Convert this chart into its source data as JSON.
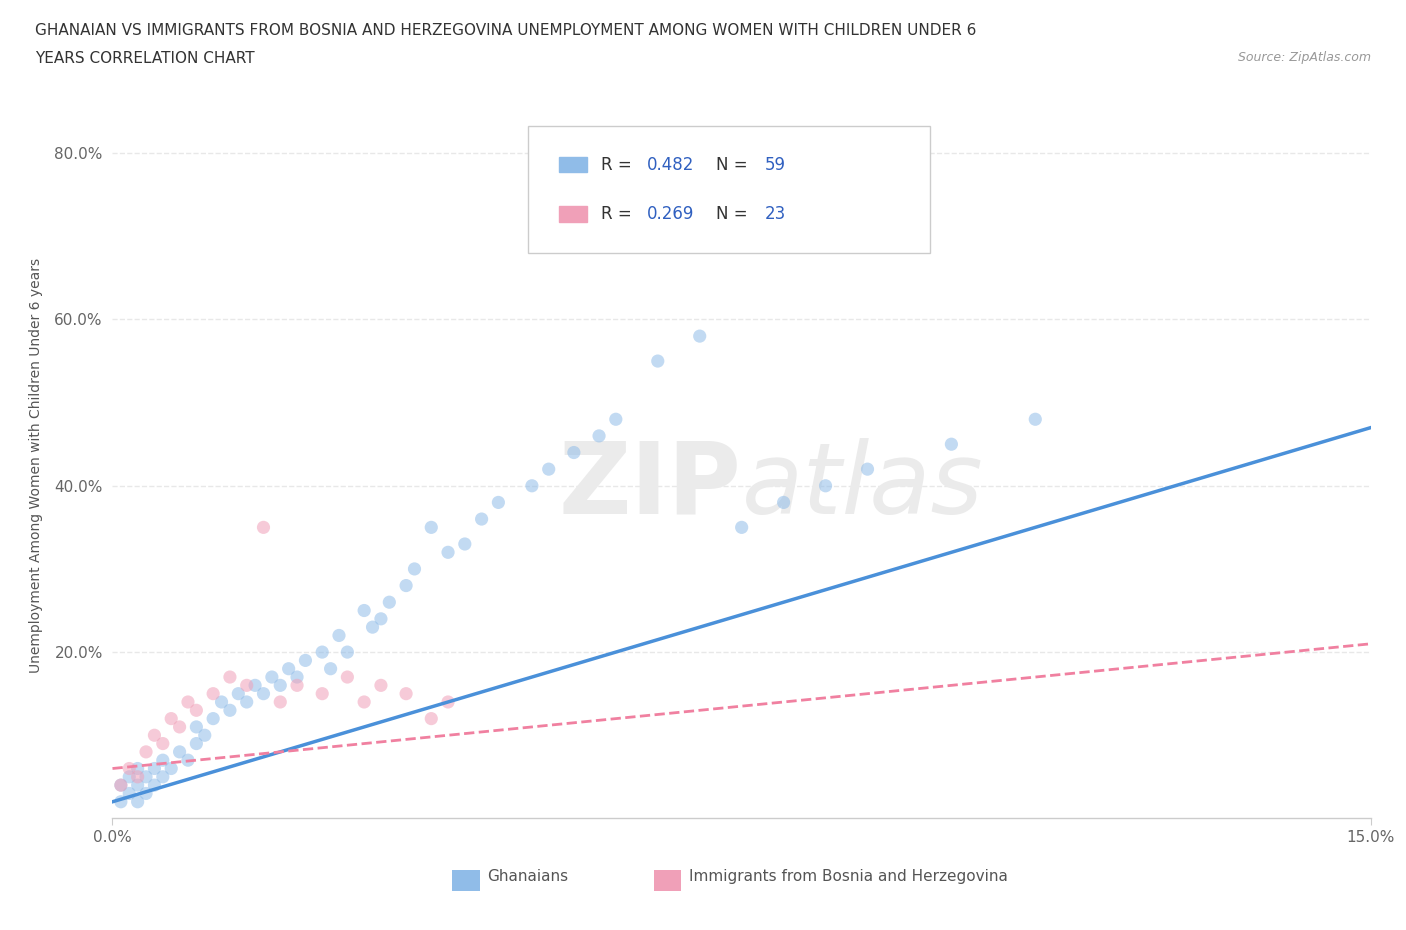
{
  "title_line1": "GHANAIAN VS IMMIGRANTS FROM BOSNIA AND HERZEGOVINA UNEMPLOYMENT AMONG WOMEN WITH CHILDREN UNDER 6",
  "title_line2": "YEARS CORRELATION CHART",
  "source": "Source: ZipAtlas.com",
  "ylabel": "Unemployment Among Women with Children Under 6 years",
  "xlim": [
    0.0,
    0.15
  ],
  "ylim": [
    0.0,
    0.85
  ],
  "ghanaians_scatter_color": "#90bce8",
  "bosnia_scatter_color": "#f0a0b8",
  "ghana_line_color": "#4a90d9",
  "bosnia_line_color": "#f080a0",
  "R_ghana": 0.482,
  "N_ghana": 59,
  "R_bosnia": 0.269,
  "N_bosnia": 23,
  "ghana_scatter_x": [
    0.001,
    0.001,
    0.002,
    0.002,
    0.003,
    0.003,
    0.003,
    0.004,
    0.004,
    0.005,
    0.005,
    0.006,
    0.006,
    0.007,
    0.008,
    0.009,
    0.01,
    0.01,
    0.011,
    0.012,
    0.013,
    0.014,
    0.015,
    0.016,
    0.017,
    0.018,
    0.019,
    0.02,
    0.021,
    0.022,
    0.023,
    0.025,
    0.026,
    0.027,
    0.028,
    0.03,
    0.031,
    0.032,
    0.033,
    0.035,
    0.036,
    0.038,
    0.04,
    0.042,
    0.044,
    0.046,
    0.05,
    0.052,
    0.055,
    0.058,
    0.06,
    0.065,
    0.07,
    0.075,
    0.08,
    0.085,
    0.09,
    0.1,
    0.11
  ],
  "ghana_scatter_y": [
    0.02,
    0.04,
    0.03,
    0.05,
    0.02,
    0.04,
    0.06,
    0.03,
    0.05,
    0.04,
    0.06,
    0.05,
    0.07,
    0.06,
    0.08,
    0.07,
    0.09,
    0.11,
    0.1,
    0.12,
    0.14,
    0.13,
    0.15,
    0.14,
    0.16,
    0.15,
    0.17,
    0.16,
    0.18,
    0.17,
    0.19,
    0.2,
    0.18,
    0.22,
    0.2,
    0.25,
    0.23,
    0.24,
    0.26,
    0.28,
    0.3,
    0.35,
    0.32,
    0.33,
    0.36,
    0.38,
    0.4,
    0.42,
    0.44,
    0.46,
    0.48,
    0.55,
    0.58,
    0.35,
    0.38,
    0.4,
    0.42,
    0.45,
    0.48
  ],
  "bosnia_scatter_x": [
    0.001,
    0.002,
    0.003,
    0.004,
    0.005,
    0.006,
    0.007,
    0.008,
    0.009,
    0.01,
    0.012,
    0.014,
    0.016,
    0.018,
    0.02,
    0.022,
    0.025,
    0.028,
    0.03,
    0.032,
    0.035,
    0.038,
    0.04
  ],
  "bosnia_scatter_y": [
    0.04,
    0.06,
    0.05,
    0.08,
    0.1,
    0.09,
    0.12,
    0.11,
    0.14,
    0.13,
    0.15,
    0.17,
    0.16,
    0.35,
    0.14,
    0.16,
    0.15,
    0.17,
    0.14,
    0.16,
    0.15,
    0.12,
    0.14
  ],
  "ghana_trend_x": [
    0.0,
    0.15
  ],
  "ghana_trend_y": [
    0.02,
    0.47
  ],
  "bosnia_trend_x": [
    0.0,
    0.15
  ],
  "bosnia_trend_y": [
    0.06,
    0.21
  ],
  "background_color": "#ffffff",
  "grid_color": "#e8e8e8",
  "legend_R_color": "#3060c0",
  "watermark_color": "#ebebeb"
}
